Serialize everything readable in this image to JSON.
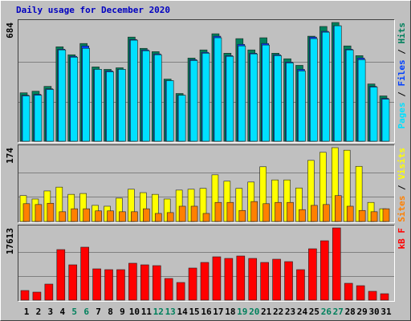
{
  "chart_data": [
    {
      "type": "bar",
      "title": "Daily usage for December 2020",
      "title_color": "#0000c0",
      "ylim": [
        0,
        684
      ],
      "yticks": [
        684
      ],
      "separator": "/",
      "series": [
        {
          "name": "Pages",
          "color": "#00e0ff",
          "values": [
            261,
            265,
            298,
            526,
            484,
            535,
            414,
            400,
            414,
            582,
            521,
            498,
            349,
            265,
            465,
            507,
            596,
            489,
            549,
            503,
            554,
            493,
            451,
            405,
            591,
            628,
            665,
            526,
            470,
            312,
            242
          ]
        },
        {
          "name": "Files",
          "color": "#0040ff",
          "values": [
            265,
            270,
            302,
            530,
            489,
            549,
            414,
            405,
            414,
            586,
            526,
            503,
            349,
            265,
            470,
            512,
            605,
            493,
            558,
            507,
            563,
            498,
            456,
            414,
            600,
            633,
            665,
            530,
            479,
            316,
            247
          ]
        },
        {
          "name": "Hits",
          "color": "#00805c",
          "values": [
            279,
            288,
            316,
            544,
            498,
            563,
            428,
            414,
            423,
            600,
            535,
            516,
            358,
            275,
            479,
            526,
            619,
            507,
            591,
            526,
            596,
            507,
            475,
            437,
            605,
            661,
            684,
            549,
            493,
            330,
            261
          ]
        }
      ]
    },
    {
      "type": "bar",
      "ylim": [
        0,
        174
      ],
      "yticks": [
        174
      ],
      "separator": "/",
      "series": [
        {
          "name": "Sites",
          "color": "#ff8000",
          "values": [
            42,
            40,
            43,
            23,
            30,
            30,
            25,
            25,
            23,
            23,
            30,
            19,
            21,
            36,
            36,
            19,
            45,
            45,
            26,
            47,
            42,
            45,
            45,
            28,
            38,
            40,
            61,
            36,
            26,
            23,
            30
          ]
        },
        {
          "name": "Visits",
          "color": "#ffff00",
          "values": [
            61,
            53,
            72,
            81,
            64,
            66,
            38,
            36,
            55,
            76,
            68,
            64,
            53,
            74,
            76,
            78,
            110,
            95,
            78,
            93,
            129,
            98,
            98,
            79,
            144,
            163,
            174,
            168,
            130,
            45,
            30
          ]
        }
      ]
    },
    {
      "type": "bar",
      "ylim": [
        0,
        17613
      ],
      "yticks": [
        17613
      ],
      "categories": [
        "1",
        "2",
        "3",
        "4",
        "5",
        "6",
        "7",
        "8",
        "9",
        "10",
        "11",
        "12",
        "13",
        "14",
        "15",
        "16",
        "17",
        "18",
        "19",
        "20",
        "21",
        "22",
        "23",
        "24",
        "25",
        "26",
        "27",
        "28",
        "29",
        "30",
        "31"
      ],
      "category_colors": [
        "#000000",
        "#000000",
        "#000000",
        "#000000",
        "#00805c",
        "#00805c",
        "#000000",
        "#000000",
        "#000000",
        "#000000",
        "#000000",
        "#00805c",
        "#00805c",
        "#000000",
        "#000000",
        "#000000",
        "#000000",
        "#000000",
        "#00805c",
        "#00805c",
        "#000000",
        "#000000",
        "#000000",
        "#000000",
        "#000000",
        "#00805c",
        "#00805c",
        "#000000",
        "#000000",
        "#000000",
        "#000000"
      ],
      "series": [
        {
          "name": "kB F",
          "color": "#ff0000",
          "values": [
            2348,
            1957,
            3914,
            12329,
            8611,
            12916,
            7632,
            7437,
            7437,
            9002,
            8611,
            8415,
            5284,
            4305,
            7828,
            9198,
            10568,
            10176,
            10764,
            10176,
            9198,
            9981,
            9394,
            7437,
            12525,
            14482,
            17613,
            4110,
            3523,
            2153,
            1566
          ]
        }
      ]
    }
  ]
}
